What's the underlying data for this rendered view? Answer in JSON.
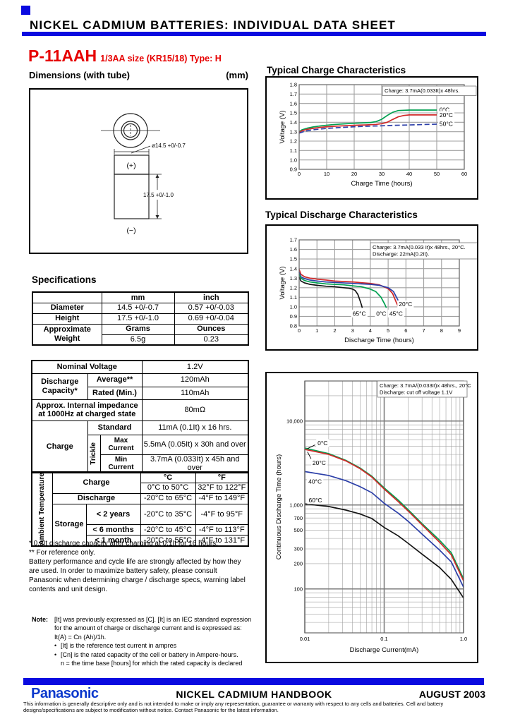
{
  "page": {
    "header_title": "NICKEL CADMIUM BATTERIES: INDIVIDUAL DATA SHEET",
    "accent_blue": "#0a0ae0",
    "logo_blue": "#0a38cc",
    "title_red": "#e60000"
  },
  "product": {
    "model": "P-11AAH",
    "subtitle": "1/3AA size (KR15/18) Type: H",
    "dimensions_label": "Dimensions (with tube)",
    "dimensions_unit": "(mm)",
    "diagram": {
      "diameter_label": "ø14.5 +0/-0.7",
      "height_label": "17.5 +0/-1.0",
      "plus_label": "(+)",
      "minus_label": "(−)"
    }
  },
  "specifications": {
    "title": "Specifications",
    "dim_table": {
      "hdr_mm": "mm",
      "hdr_inch": "inch",
      "rows": [
        {
          "label": "Diameter",
          "mm": "14.5 +0/-0.7",
          "inch": "0.57 +0/-0.03"
        },
        {
          "label": "Height",
          "mm": "17.5 +0/-1.0",
          "inch": "0.69 +0/-0.04"
        }
      ],
      "weight": {
        "label": "Approximate Weight",
        "unit_metric": "Grams",
        "unit_imperial": "Ounces",
        "grams": "6.5g",
        "ounces": "0.23"
      }
    },
    "electrical": {
      "nominal_voltage_label": "Nominal Voltage",
      "nominal_voltage": "1.2V",
      "discharge_capacity_label": "Discharge Capacity*",
      "average_label": "Average**",
      "average": "120mAh",
      "rated_label": "Rated (Min.)",
      "rated": "110mAh",
      "impedance_label": "Approx. Internal impedance at 1000Hz at charged state",
      "impedance": "80mΩ",
      "charge_label": "Charge",
      "standard_label": "Standard",
      "standard": "11mA (0.1It) x 16 hrs.",
      "trickle_label": "Trickle",
      "max_current_label": "Max Current",
      "max_current": "5.5mA (0.05It) x 30h and over",
      "min_current_label": "Min Current",
      "min_current": "3.7mA (0.033It) x 45h and over"
    },
    "ambient": {
      "label": "Ambient Temperature",
      "col_c": "°C",
      "col_f": "°F",
      "charge_label": "Charge",
      "charge_c": "0°C to 50°C",
      "charge_f": "32°F to 122°F",
      "discharge_label": "Discharge",
      "discharge_c": "-20°C to 65°C",
      "discharge_f": "-4°F to 149°F",
      "storage_label": "Storage",
      "storage": [
        {
          "label": "< 2 years",
          "c": "-20°C to 35°C",
          "f": "-4°F to  95°F"
        },
        {
          "label": "< 6 months",
          "c": "-20°C to 45°C",
          "f": "-4°F to 113°F"
        },
        {
          "label": "< 1 month",
          "c": "-20°C to 55°C",
          "f": "-4°F to 131°F"
        }
      ]
    },
    "footnote1": "* 0.2It discharge capacity after charging at 0.1It for 16 hours.",
    "footnote2": "** For reference only.",
    "footnote_para": "Battery performance and cycle life are strongly affected by how they are used. In order to maximize battery safety, please consult Panasonic when determining charge / discharge specs, warning label contents and unit design."
  },
  "note": {
    "label": "Note:",
    "intro": "[It] was previously expressed as [C]. [It] is an IEC standard expression for the amount of charge or discharge current and is expressed as: It(A) = Cn (Ah)/1h.",
    "bullet1": "[It] is the reference test current in ampres",
    "bullet2": "[Cn] is the rated capacity of the cell or battery in Ampere-hours.",
    "tail": "n = the time base [hours] for which the rated capacity is declared"
  },
  "chart_data": [
    {
      "type": "line",
      "title": "Typical Charge Characteristics",
      "annotation": [
        "Charge: 3.7mA(0.033It)x 48hrs."
      ],
      "xlabel": "Charge Time (hours)",
      "ylabel": "Voltage (V)",
      "xlim": [
        0,
        60
      ],
      "ylim": [
        0.9,
        1.8
      ],
      "xticks": [
        {
          "v": 0,
          "t": "0"
        },
        {
          "v": 10,
          "t": "10"
        },
        {
          "v": 20,
          "t": "20"
        },
        {
          "v": 30,
          "t": "30"
        },
        {
          "v": 40,
          "t": "40"
        },
        {
          "v": 50,
          "t": "50"
        },
        {
          "v": 60,
          "t": "60"
        }
      ],
      "yticks": [
        {
          "v": 0.9,
          "t": "0.9"
        },
        {
          "v": 1.0,
          "t": "1.0"
        },
        {
          "v": 1.1,
          "t": "1.1"
        },
        {
          "v": 1.2,
          "t": "1.2"
        },
        {
          "v": 1.3,
          "t": "1.3"
        },
        {
          "v": 1.4,
          "t": "1.4"
        },
        {
          "v": 1.5,
          "t": "1.5"
        },
        {
          "v": 1.6,
          "t": "1.6"
        },
        {
          "v": 1.7,
          "t": "1.7"
        },
        {
          "v": 1.8,
          "t": "1.8"
        }
      ],
      "series": [
        {
          "name": "0°C",
          "color": "#00a050",
          "x": [
            0,
            1,
            3,
            5,
            8,
            12,
            16,
            20,
            24,
            26,
            28,
            30,
            32,
            34,
            36,
            40,
            45,
            50
          ],
          "y": [
            1.3,
            1.32,
            1.338,
            1.35,
            1.363,
            1.375,
            1.383,
            1.39,
            1.395,
            1.398,
            1.408,
            1.432,
            1.472,
            1.507,
            1.525,
            1.53,
            1.53,
            1.53
          ]
        },
        {
          "name": "20°C",
          "color": "#d02828",
          "x": [
            0,
            1,
            3,
            5,
            8,
            12,
            16,
            20,
            24,
            28,
            30,
            32,
            34,
            36,
            38,
            40,
            45,
            50
          ],
          "y": [
            1.293,
            1.31,
            1.325,
            1.335,
            1.347,
            1.357,
            1.363,
            1.368,
            1.372,
            1.378,
            1.385,
            1.4,
            1.43,
            1.458,
            1.472,
            1.478,
            1.478,
            1.478
          ]
        },
        {
          "name": "50°C",
          "color": "#2c3fa8",
          "dash": "7,3.5",
          "x": [
            0,
            2,
            5,
            10,
            15,
            20,
            25,
            30,
            35,
            40,
            45,
            50
          ],
          "y": [
            1.285,
            1.305,
            1.32,
            1.335,
            1.345,
            1.352,
            1.358,
            1.363,
            1.368,
            1.372,
            1.376,
            1.38
          ]
        }
      ],
      "labels": [
        {
          "text": "0°C",
          "x": 51,
          "y": 1.532
        },
        {
          "text": "20°C",
          "x": 51,
          "y": 1.478
        },
        {
          "text": "50°C",
          "x": 51,
          "y": 1.383
        }
      ]
    },
    {
      "type": "line",
      "title": "Typical Discharge Characteristics",
      "annotation": [
        "Charge: 3.7mA(0.033 It)x 48hrs., 20°C.",
        "Discharge: 22mA(0.2It)."
      ],
      "xlabel": "Discharge Time (hours)",
      "ylabel": "Voltage (V)",
      "xlim": [
        0,
        9
      ],
      "ylim": [
        0.8,
        1.7
      ],
      "xticks": [
        {
          "v": 0,
          "t": "0"
        },
        {
          "v": 1,
          "t": "1"
        },
        {
          "v": 2,
          "t": "2"
        },
        {
          "v": 3,
          "t": "3"
        },
        {
          "v": 4,
          "t": "4"
        },
        {
          "v": 5,
          "t": "5"
        },
        {
          "v": 6,
          "t": "6"
        },
        {
          "v": 7,
          "t": "7"
        },
        {
          "v": 8,
          "t": "8"
        },
        {
          "v": 9,
          "t": "9"
        }
      ],
      "yticks": [
        {
          "v": 0.8,
          "t": "0.8"
        },
        {
          "v": 0.9,
          "t": "0.9"
        },
        {
          "v": 1.0,
          "t": "1.0"
        },
        {
          "v": 1.1,
          "t": "1.1"
        },
        {
          "v": 1.2,
          "t": "1.2"
        },
        {
          "v": 1.3,
          "t": "1.3"
        },
        {
          "v": 1.4,
          "t": "1.4"
        },
        {
          "v": 1.5,
          "t": "1.5"
        },
        {
          "v": 1.6,
          "t": "1.6"
        },
        {
          "v": 1.7,
          "t": "1.7"
        }
      ],
      "series": [
        {
          "name": "45°C",
          "color": "#d02828",
          "x": [
            0,
            0.1,
            0.3,
            0.6,
            1,
            1.5,
            2,
            3,
            4,
            4.5,
            5,
            5.25,
            5.45,
            5.6
          ],
          "y": [
            1.39,
            1.34,
            1.315,
            1.3,
            1.29,
            1.28,
            1.27,
            1.26,
            1.245,
            1.23,
            1.19,
            1.14,
            1.05,
            0.99
          ]
        },
        {
          "name": "20°C",
          "color": "#2c3fa8",
          "x": [
            0,
            0.1,
            0.3,
            0.6,
            1,
            1.5,
            2,
            3,
            4,
            4.5,
            5,
            5.3,
            5.55,
            5.7
          ],
          "y": [
            1.36,
            1.315,
            1.295,
            1.28,
            1.27,
            1.26,
            1.255,
            1.245,
            1.235,
            1.225,
            1.2,
            1.16,
            1.07,
            0.99
          ]
        },
        {
          "name": "0°C",
          "color": "#00a050",
          "x": [
            0,
            0.1,
            0.3,
            0.6,
            1,
            1.5,
            2,
            2.5,
            3,
            3.5,
            4,
            4.3,
            4.6,
            4.8,
            4.9
          ],
          "y": [
            1.34,
            1.3,
            1.275,
            1.26,
            1.25,
            1.24,
            1.235,
            1.23,
            1.22,
            1.21,
            1.185,
            1.16,
            1.1,
            1.03,
            0.99
          ]
        },
        {
          "name": "65°C",
          "color": "#151515",
          "x": [
            0,
            0.1,
            0.3,
            0.6,
            1,
            1.5,
            2,
            2.5,
            2.8,
            3,
            3.15,
            3.3,
            3.45,
            3.55
          ],
          "y": [
            1.31,
            1.27,
            1.25,
            1.235,
            1.225,
            1.215,
            1.21,
            1.2,
            1.195,
            1.185,
            1.17,
            1.13,
            1.05,
            0.99
          ]
        }
      ],
      "labels": [
        {
          "text": "65°C",
          "x": 3.0,
          "y": 0.93
        },
        {
          "text": "0°C",
          "x": 4.33,
          "y": 0.93
        },
        {
          "text": "45°C",
          "x": 5.07,
          "y": 0.93
        },
        {
          "text": "20°C",
          "x": 5.6,
          "y": 1.027
        }
      ]
    },
    {
      "type": "line",
      "xscale": "log",
      "yscale": "log",
      "annotation": [
        "Charge: 3.7mA/(0.033It)x 48hrs., 20°C",
        "Discharge: cut off voltage 1.1V"
      ],
      "xlabel": "Discharge Current(mA)",
      "ylabel": "Continuous Discharge Time (hours)",
      "xlim": [
        0.01,
        1.0
      ],
      "ylim": [
        30,
        30000
      ],
      "xticks": [
        {
          "v": 0.01,
          "t": "0.01"
        },
        {
          "v": 0.1,
          "t": "0.1"
        },
        {
          "v": 1,
          "t": "1.0"
        }
      ],
      "yticks": [
        {
          "v": 100,
          "t": "100"
        },
        {
          "v": 200,
          "t": "200"
        },
        {
          "v": 300,
          "t": "300"
        },
        {
          "v": 500,
          "t": "500"
        },
        {
          "v": 700,
          "t": "700"
        },
        {
          "v": 1000,
          "t": "1,000"
        },
        {
          "v": 10000,
          "t": "10,000"
        }
      ],
      "series": [
        {
          "name": "0°C",
          "color": "#00a050",
          "x": [
            0.01,
            0.02,
            0.033,
            0.05,
            0.07,
            0.1,
            0.15,
            0.2,
            0.3,
            0.5,
            0.7,
            1.0
          ],
          "y": [
            4760,
            4100,
            3400,
            2750,
            2200,
            1600,
            1150,
            880,
            600,
            380,
            270,
            132
          ]
        },
        {
          "name": "20°C",
          "color": "#d02828",
          "x": [
            0.01,
            0.02,
            0.033,
            0.05,
            0.07,
            0.1,
            0.15,
            0.2,
            0.3,
            0.5,
            0.7,
            1.0
          ],
          "y": [
            4600,
            4000,
            3350,
            2700,
            2150,
            1550,
            1100,
            850,
            580,
            360,
            255,
            125
          ]
        },
        {
          "name": "40°C",
          "color": "#2c3fa8",
          "x": [
            0.01,
            0.02,
            0.033,
            0.05,
            0.07,
            0.1,
            0.15,
            0.2,
            0.3,
            0.5,
            0.7,
            1.0
          ],
          "y": [
            2500,
            2250,
            1950,
            1650,
            1400,
            1050,
            800,
            640,
            450,
            290,
            210,
            105
          ]
        },
        {
          "name": "60°C",
          "color": "#151515",
          "x": [
            0.01,
            0.02,
            0.033,
            0.05,
            0.07,
            0.1,
            0.15,
            0.2,
            0.3,
            0.5,
            0.7,
            1.0
          ],
          "y": [
            1030,
            960,
            870,
            780,
            690,
            540,
            430,
            350,
            260,
            180,
            130,
            78
          ]
        }
      ],
      "labels": [
        {
          "text": "0°C",
          "x": 0.0145,
          "y": 5470,
          "leader": [
            0.0135,
            5200,
            0.0108,
            4700
          ]
        },
        {
          "text": "20°C",
          "x": 0.0125,
          "y": 3180,
          "leader": [
            0.012,
            3550,
            0.0108,
            4300
          ]
        },
        {
          "text": "40°C",
          "x": 0.0111,
          "y": 1905
        },
        {
          "text": "60°C",
          "x": 0.0112,
          "y": 1140
        }
      ]
    }
  ],
  "footer": {
    "brand": "Panasonic",
    "center": "NICKEL CADMIUM HANDBOOK",
    "right": "AUGUST 2003",
    "disclaimer": "This information is generally descriptive only and is not intended to make or imply any representation, guarantee or warranty with respect to any cells and batteries. Cell and battery designs/specifications are subject to modification without notice. Contact Panasonic for the latest information."
  }
}
